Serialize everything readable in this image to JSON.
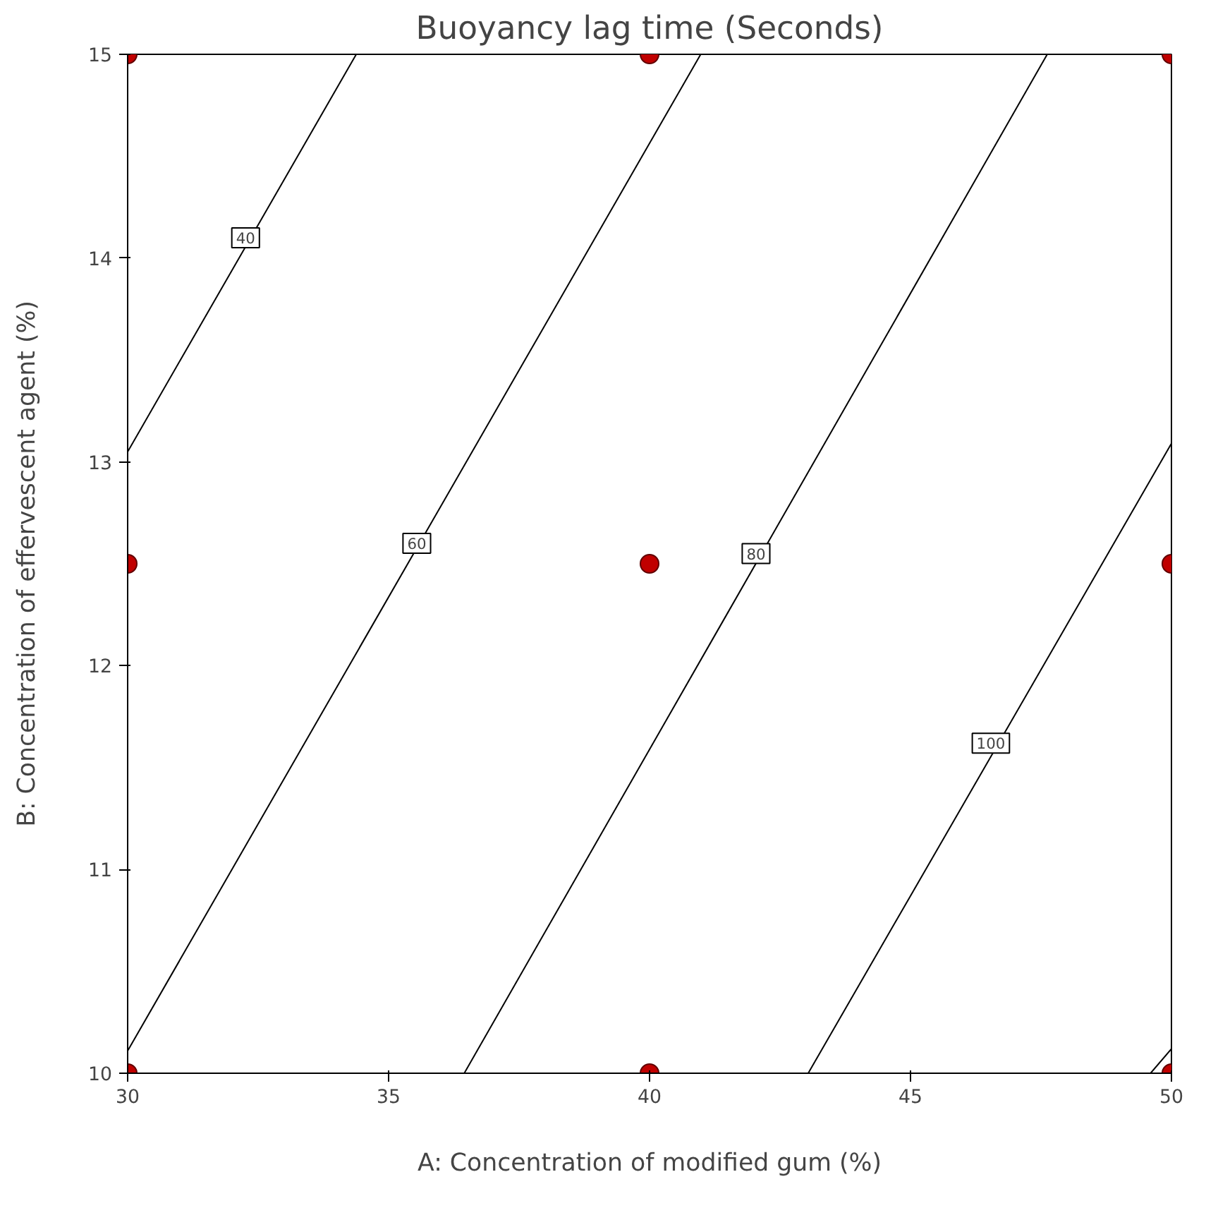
{
  "chart_data": {
    "type": "line",
    "title": "Buoyancy lag time (Seconds)",
    "xlabel": "A: Concentration of modified gum (%)",
    "ylabel": "B: Concentration of effervescent agent (%)",
    "xlim": [
      30,
      50
    ],
    "ylim": [
      10,
      15
    ],
    "xticks": [
      30,
      35,
      40,
      45,
      50
    ],
    "yticks": [
      10,
      11,
      12,
      13,
      14,
      15
    ],
    "grid": false,
    "marker": "none",
    "line_style": "solid",
    "series": [
      {
        "color": "#000000",
        "x": [
          30,
          34.38
        ],
        "values": [
          13.05,
          15
        ]
      },
      {
        "color": "#000000",
        "x": [
          30,
          40.98
        ],
        "values": [
          10.11,
          15
        ]
      },
      {
        "color": "#000000",
        "x": [
          36.45,
          47.62
        ],
        "values": [
          10,
          15
        ]
      },
      {
        "color": "#000000",
        "x": [
          43.04,
          50
        ],
        "values": [
          10,
          13.09
        ]
      },
      {
        "color": "#000000",
        "x": [
          49.6,
          50
        ],
        "values": [
          10,
          10.12
        ]
      },
      {
        "type": "scatter",
        "marker": "circle",
        "color": "#c00000",
        "x": [
          30,
          30,
          30,
          40,
          40,
          40,
          50,
          50,
          50
        ],
        "values": [
          10,
          12.5,
          15,
          10,
          12.5,
          15,
          10,
          12.5,
          15
        ]
      }
    ],
    "annotations": [
      {
        "text": "40",
        "x": 32.26,
        "y": 14.1
      },
      {
        "text": "60",
        "x": 35.54,
        "y": 12.6
      },
      {
        "text": "80",
        "x": 42.04,
        "y": 12.55
      },
      {
        "text": "100",
        "x": 46.54,
        "y": 11.62
      }
    ]
  }
}
